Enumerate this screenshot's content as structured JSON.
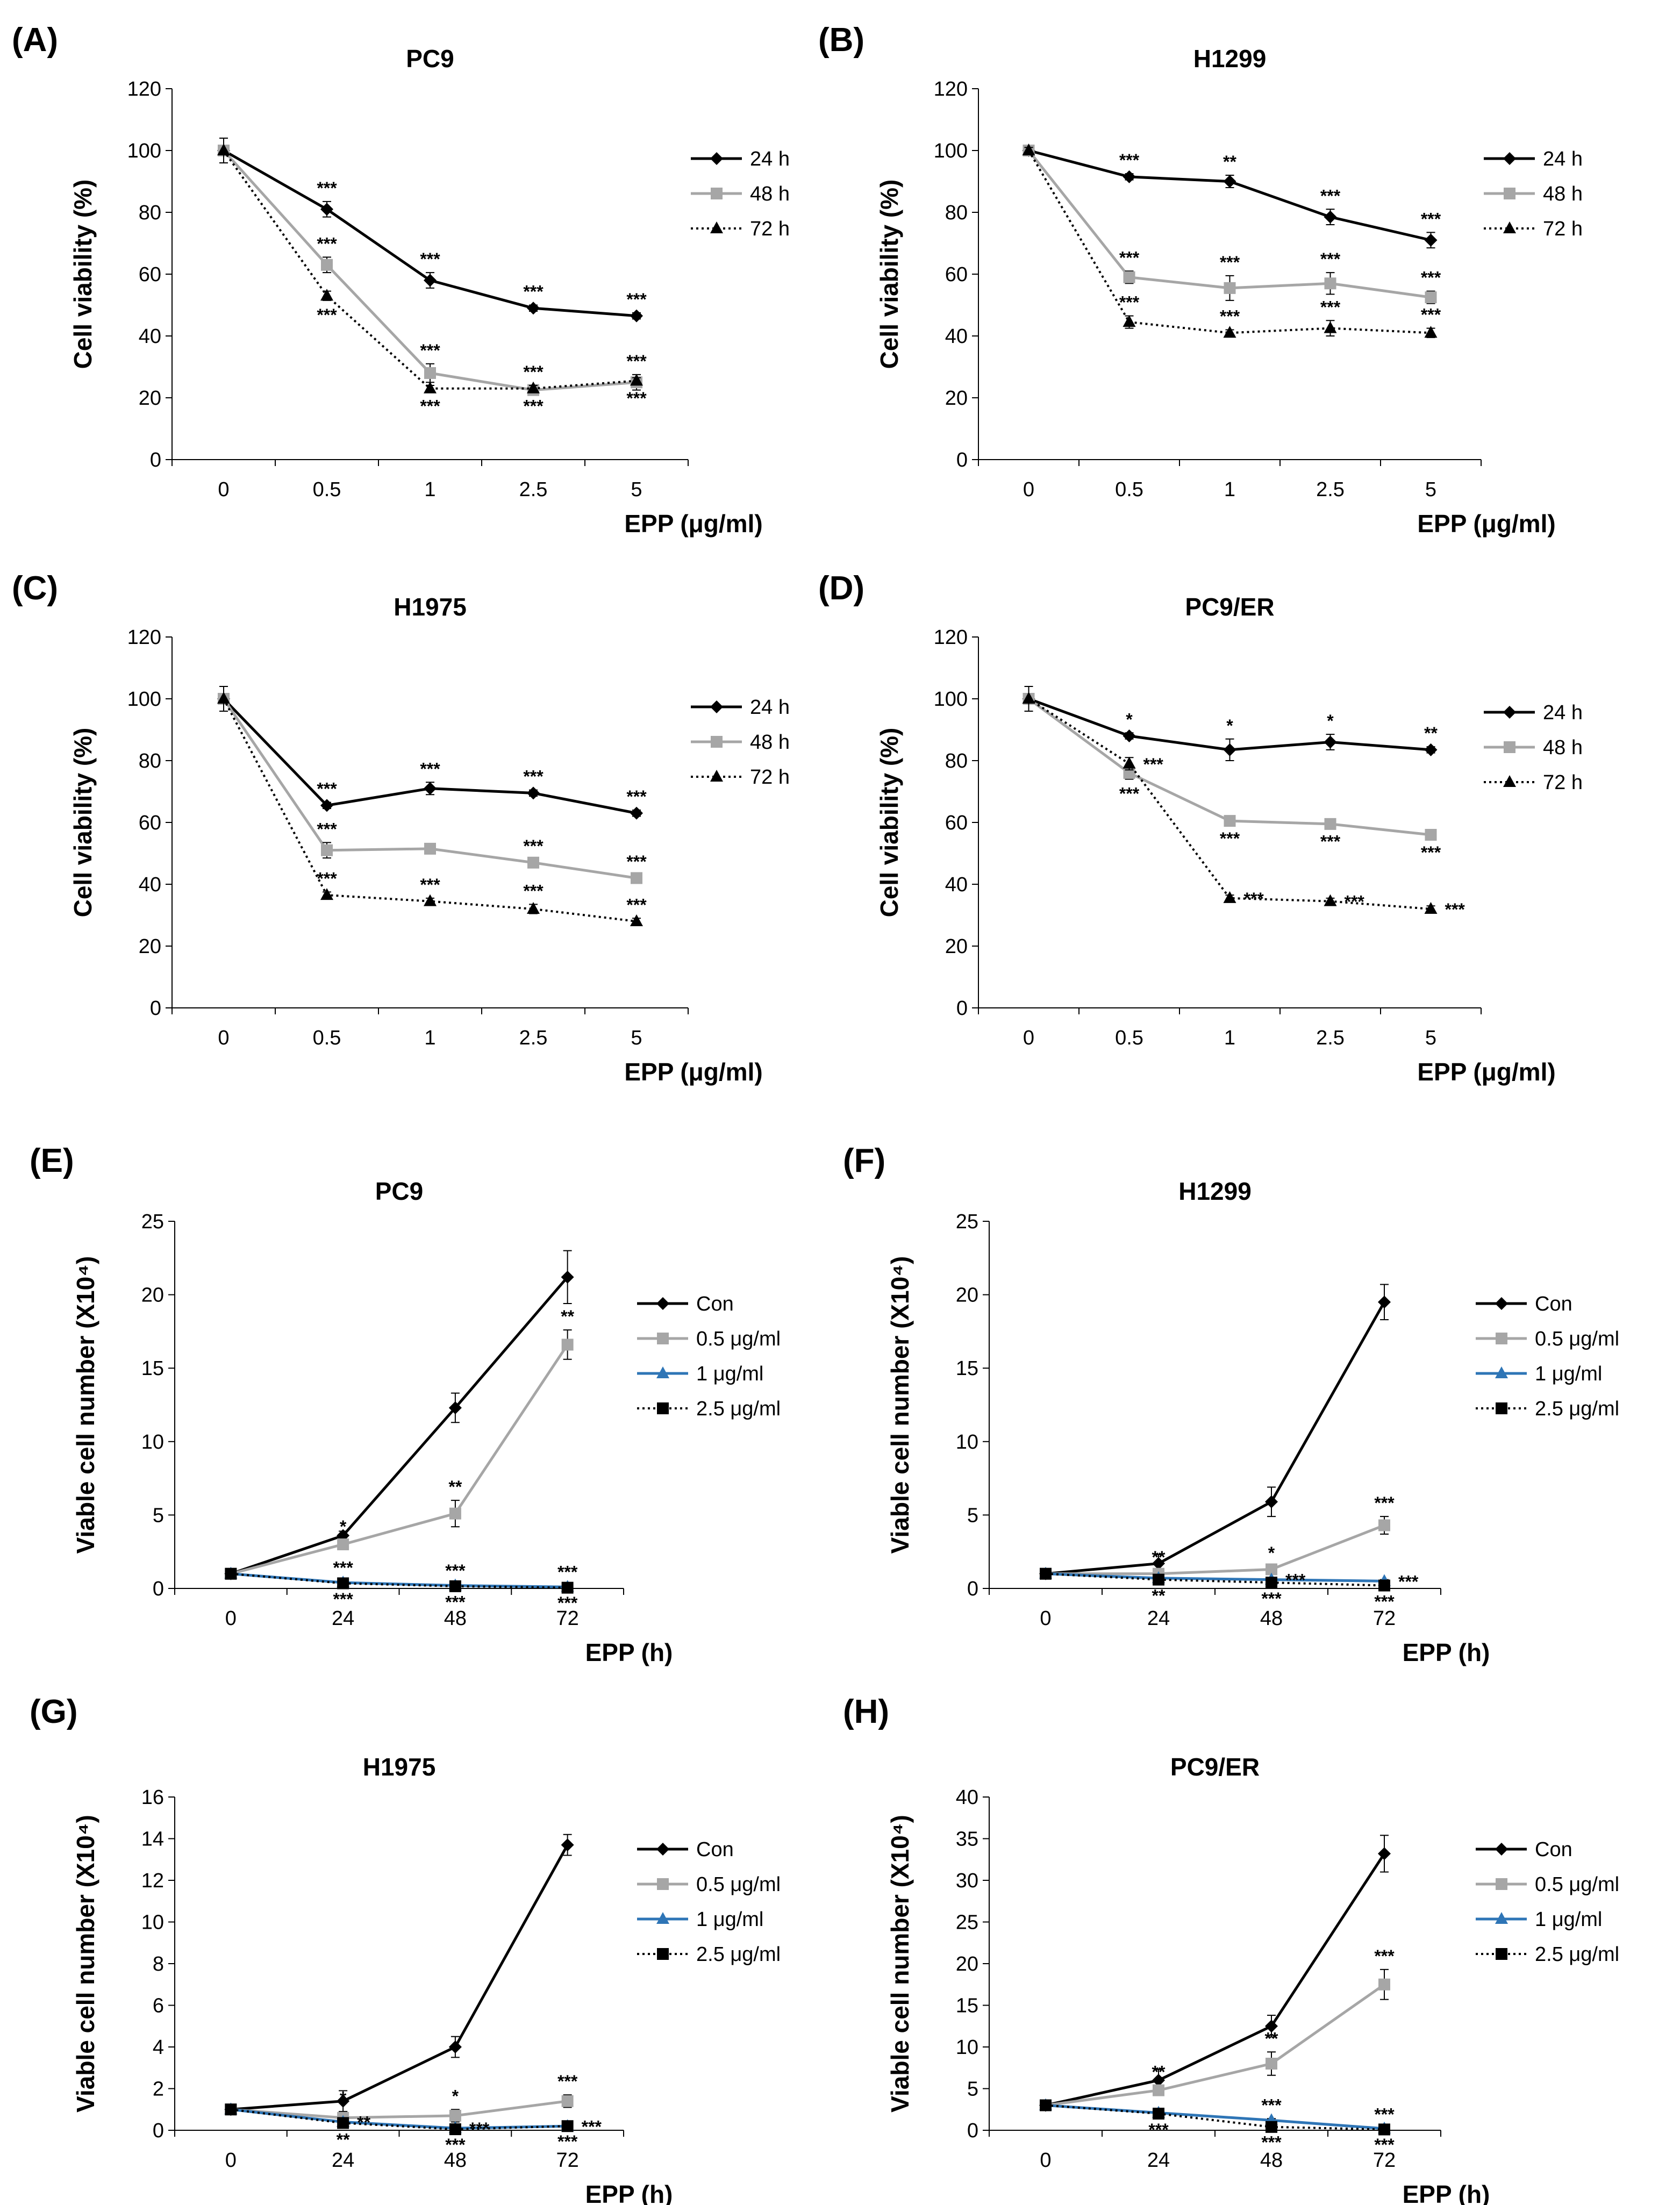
{
  "colors": {
    "black": "#000000",
    "gray": "#a6a6a6",
    "blue": "#2e75b6"
  },
  "chart_data": [
    {
      "panel": "(A)",
      "title": "PC9",
      "type": "line",
      "xlabel": "EPP (μg/ml)",
      "ylabel": "Cell viability (%)",
      "categories": [
        "0",
        "0.5",
        "1",
        "2.5",
        "5"
      ],
      "ylim": [
        0,
        120
      ],
      "yticks": [
        "0",
        "20",
        "40",
        "60",
        "80",
        "100",
        "120"
      ],
      "legend_position": "right",
      "series": [
        {
          "name": "24 h",
          "values": [
            100,
            81,
            58,
            49,
            46.5
          ],
          "errors": [
            4,
            2.5,
            2.5,
            1,
            1
          ],
          "color": "#000000",
          "marker": "diamond",
          "dash": "solid",
          "sig": [
            "",
            "***",
            "***",
            "***",
            "***"
          ],
          "sig_pos": "above"
        },
        {
          "name": "48 h",
          "values": [
            100,
            63,
            28,
            22.5,
            25
          ],
          "errors": [
            4,
            2.5,
            3,
            1.5,
            2.5
          ],
          "color": "#a6a6a6",
          "marker": "square",
          "dash": "solid",
          "sig": [
            "",
            "***",
            "***",
            "***",
            "***"
          ],
          "sig_pos": "above"
        },
        {
          "name": "72 h",
          "values": [
            100,
            53,
            23,
            23,
            25.5
          ],
          "errors": [
            4,
            1.5,
            1,
            1,
            1
          ],
          "color": "#000000",
          "marker": "triangle",
          "dash": "dotted",
          "sig": [
            "",
            "***",
            "***",
            "***",
            "***"
          ],
          "sig_pos": "below"
        }
      ]
    },
    {
      "panel": "(B)",
      "title": "H1299",
      "type": "line",
      "xlabel": "EPP (μg/ml)",
      "ylabel": "Cell viability (%)",
      "categories": [
        "0",
        "0.5",
        "1",
        "2.5",
        "5"
      ],
      "ylim": [
        0,
        120
      ],
      "yticks": [
        "0",
        "20",
        "40",
        "60",
        "80",
        "100",
        "120"
      ],
      "legend_position": "right",
      "series": [
        {
          "name": "24 h",
          "values": [
            100,
            91.5,
            90,
            78.5,
            71
          ],
          "errors": [
            1,
            1,
            2,
            2.5,
            2.5
          ],
          "color": "#000000",
          "marker": "diamond",
          "dash": "solid",
          "sig": [
            "",
            "***",
            "**",
            "***",
            "***"
          ],
          "sig_pos": "above"
        },
        {
          "name": "48 h",
          "values": [
            100,
            59,
            55.5,
            57,
            52.5
          ],
          "errors": [
            1,
            2,
            4,
            3.5,
            2
          ],
          "color": "#a6a6a6",
          "marker": "square",
          "dash": "solid",
          "sig": [
            "",
            "***",
            "***",
            "***",
            "***"
          ],
          "sig_pos": "above"
        },
        {
          "name": "72 h",
          "values": [
            100,
            44.5,
            41,
            42.5,
            41
          ],
          "errors": [
            1,
            2,
            1,
            2.5,
            1.5
          ],
          "color": "#000000",
          "marker": "triangle",
          "dash": "dotted",
          "sig": [
            "",
            "***",
            "***",
            "***",
            "***"
          ],
          "sig_pos": "above"
        }
      ]
    },
    {
      "panel": "(C)",
      "title": "H1975",
      "type": "line",
      "xlabel": "EPP (μg/ml)",
      "ylabel": "Cell viability (%)",
      "categories": [
        "0",
        "0.5",
        "1",
        "2.5",
        "5"
      ],
      "ylim": [
        0,
        120
      ],
      "yticks": [
        "0",
        "20",
        "40",
        "60",
        "80",
        "100",
        "120"
      ],
      "legend_position": "right",
      "series": [
        {
          "name": "24 h",
          "values": [
            100,
            65.5,
            71,
            69.5,
            63
          ],
          "errors": [
            4,
            1,
            2,
            1,
            1
          ],
          "color": "#000000",
          "marker": "diamond",
          "dash": "solid",
          "sig": [
            "",
            "***",
            "***",
            "***",
            "***"
          ],
          "sig_pos": "above"
        },
        {
          "name": "48 h",
          "values": [
            100,
            51,
            51.5,
            47,
            42
          ],
          "errors": [
            4,
            2.5,
            1,
            1,
            1
          ],
          "color": "#a6a6a6",
          "marker": "square",
          "dash": "solid",
          "sig": [
            "",
            "***",
            "",
            "***",
            "***"
          ],
          "sig_pos": "above"
        },
        {
          "name": "72 h",
          "values": [
            100,
            36.5,
            34.5,
            32,
            28
          ],
          "errors": [
            4,
            1,
            1,
            1.5,
            1
          ],
          "color": "#000000",
          "marker": "triangle",
          "dash": "dotted",
          "sig": [
            "",
            "***",
            "***",
            "***",
            "***"
          ],
          "sig_pos": "above"
        }
      ]
    },
    {
      "panel": "(D)",
      "title": "PC9/ER",
      "type": "line",
      "xlabel": "EPP (μg/ml)",
      "ylabel": "Cell viability (%)",
      "categories": [
        "0",
        "0.5",
        "1",
        "2.5",
        "5"
      ],
      "ylim": [
        0,
        120
      ],
      "yticks": [
        "0",
        "20",
        "40",
        "60",
        "80",
        "100",
        "120"
      ],
      "legend_position": "right",
      "series": [
        {
          "name": "24 h",
          "values": [
            100,
            88,
            83.5,
            86,
            83.5
          ],
          "errors": [
            4,
            1,
            3.5,
            2.5,
            1
          ],
          "color": "#000000",
          "marker": "diamond",
          "dash": "solid",
          "sig": [
            "",
            "*",
            "*",
            "*",
            "**"
          ],
          "sig_pos": "above"
        },
        {
          "name": "48 h",
          "values": [
            100,
            76,
            60.5,
            59.5,
            56
          ],
          "errors": [
            4,
            2,
            1,
            1,
            1
          ],
          "color": "#a6a6a6",
          "marker": "square",
          "dash": "solid",
          "sig": [
            "",
            "***",
            "***",
            "***",
            "***"
          ],
          "sig_pos": "below"
        },
        {
          "name": "72 h",
          "values": [
            100,
            79,
            35.5,
            34.5,
            32
          ],
          "errors": [
            4,
            2,
            1,
            1,
            1
          ],
          "color": "#000000",
          "marker": "triangle",
          "dash": "dotted",
          "sig": [
            "",
            "***",
            "***",
            "***",
            "***"
          ],
          "sig_pos": "right"
        }
      ]
    },
    {
      "panel": "(E)",
      "title": "PC9",
      "type": "line",
      "xlabel": "EPP (h)",
      "ylabel": "Viable cell number (X10⁴)",
      "categories": [
        "0",
        "24",
        "48",
        "72"
      ],
      "ylim": [
        0,
        25
      ],
      "yticks": [
        "0",
        "5",
        "10",
        "15",
        "20",
        "25"
      ],
      "legend_position": "right",
      "series": [
        {
          "name": "Con",
          "values": [
            1,
            3.6,
            12.3,
            21.2
          ],
          "errors": [
            0.2,
            0.3,
            1,
            1.8
          ],
          "color": "#000000",
          "marker": "diamond",
          "dash": "solid",
          "sig": [
            "",
            "",
            "",
            ""
          ],
          "sig_pos": "above"
        },
        {
          "name": "0.5 μg/ml",
          "values": [
            1,
            3,
            5.1,
            16.6
          ],
          "errors": [
            0.2,
            0.3,
            0.9,
            1
          ],
          "color": "#a6a6a6",
          "marker": "square",
          "dash": "solid",
          "sig": [
            "",
            "*",
            "**",
            "**"
          ],
          "sig_pos": "above"
        },
        {
          "name": "1 μg/ml",
          "values": [
            1,
            0.4,
            0.2,
            0.1
          ],
          "errors": [
            0.1,
            0.1,
            0.1,
            0.1
          ],
          "color": "#2e75b6",
          "marker": "triangle",
          "dash": "solid",
          "sig": [
            "",
            "***",
            "***",
            "***"
          ],
          "sig_pos": "above"
        },
        {
          "name": "2.5 μg/ml",
          "values": [
            1,
            0.35,
            0.15,
            0.05
          ],
          "errors": [
            0.1,
            0.1,
            0.1,
            0.05
          ],
          "color": "#000000",
          "marker": "square",
          "dash": "dotted",
          "sig": [
            "",
            "***",
            "***",
            "***"
          ],
          "sig_pos": "below"
        }
      ]
    },
    {
      "panel": "(F)",
      "title": "H1299",
      "type": "line",
      "xlabel": "EPP (h)",
      "ylabel": "Viable cell number (X10⁴)",
      "categories": [
        "0",
        "24",
        "48",
        "72"
      ],
      "ylim": [
        0,
        25
      ],
      "yticks": [
        "0",
        "5",
        "10",
        "15",
        "20",
        "25"
      ],
      "legend_position": "right",
      "series": [
        {
          "name": "Con",
          "values": [
            1,
            1.7,
            5.9,
            19.5
          ],
          "errors": [
            0.2,
            0.6,
            1,
            1.2
          ],
          "color": "#000000",
          "marker": "diamond",
          "dash": "solid",
          "sig": [
            "",
            "",
            "",
            ""
          ],
          "sig_pos": "above"
        },
        {
          "name": "0.5 μg/ml",
          "values": [
            1,
            1,
            1.3,
            4.3
          ],
          "errors": [
            0.2,
            0.2,
            0.2,
            0.6
          ],
          "color": "#a6a6a6",
          "marker": "square",
          "dash": "solid",
          "sig": [
            "",
            "**",
            "*",
            "***"
          ],
          "sig_pos": "above"
        },
        {
          "name": "1 μg/ml",
          "values": [
            1,
            0.7,
            0.6,
            0.5
          ],
          "errors": [
            0.1,
            0.1,
            0.1,
            0.1
          ],
          "color": "#2e75b6",
          "marker": "triangle",
          "dash": "solid",
          "sig": [
            "",
            "",
            "***",
            "***"
          ],
          "sig_pos": "right"
        },
        {
          "name": "2.5 μg/ml",
          "values": [
            1,
            0.6,
            0.4,
            0.2
          ],
          "errors": [
            0.1,
            0.1,
            0.1,
            0.1
          ],
          "color": "#000000",
          "marker": "square",
          "dash": "dotted",
          "sig": [
            "",
            "**",
            "***",
            "***"
          ],
          "sig_pos": "below"
        }
      ]
    },
    {
      "panel": "(G)",
      "title": "H1975",
      "type": "line",
      "xlabel": "EPP (h)",
      "ylabel": "Viable cell number (X10⁴)",
      "categories": [
        "0",
        "24",
        "48",
        "72"
      ],
      "ylim": [
        0,
        16
      ],
      "yticks": [
        "0",
        "2",
        "4",
        "6",
        "8",
        "10",
        "12",
        "14",
        "16"
      ],
      "legend_position": "right",
      "series": [
        {
          "name": "Con",
          "values": [
            1,
            1.4,
            4,
            13.7
          ],
          "errors": [
            0.1,
            0.5,
            0.5,
            0.5
          ],
          "color": "#000000",
          "marker": "diamond",
          "dash": "solid",
          "sig": [
            "",
            "",
            "",
            ""
          ],
          "sig_pos": "above"
        },
        {
          "name": "0.5 μg/ml",
          "values": [
            1,
            0.6,
            0.7,
            1.4
          ],
          "errors": [
            0.1,
            0.3,
            0.3,
            0.3
          ],
          "color": "#a6a6a6",
          "marker": "square",
          "dash": "solid",
          "sig": [
            "",
            "*",
            "*",
            "***"
          ],
          "sig_pos": "above"
        },
        {
          "name": "1 μg/ml",
          "values": [
            1,
            0.4,
            0.1,
            0.2
          ],
          "errors": [
            0.1,
            0.1,
            0.05,
            0.05
          ],
          "color": "#2e75b6",
          "marker": "triangle",
          "dash": "solid",
          "sig": [
            "",
            "**",
            "***",
            "***"
          ],
          "sig_pos": "right"
        },
        {
          "name": "2.5 μg/ml",
          "values": [
            1,
            0.35,
            0.05,
            0.2
          ],
          "errors": [
            0.1,
            0.1,
            0.05,
            0.05
          ],
          "color": "#000000",
          "marker": "square",
          "dash": "dotted",
          "sig": [
            "",
            "**",
            "***",
            "***"
          ],
          "sig_pos": "below"
        }
      ]
    },
    {
      "panel": "(H)",
      "title": "PC9/ER",
      "type": "line",
      "xlabel": "EPP (h)",
      "ylabel": "Viable cell number (X10⁴)",
      "categories": [
        "0",
        "24",
        "48",
        "72"
      ],
      "ylim": [
        0,
        40
      ],
      "yticks": [
        "0",
        "5",
        "10",
        "15",
        "20",
        "25",
        "30",
        "35",
        "40"
      ],
      "legend_position": "right",
      "series": [
        {
          "name": "Con",
          "values": [
            3,
            6,
            12.5,
            33.2
          ],
          "errors": [
            0.3,
            1.3,
            1.3,
            2.2
          ],
          "color": "#000000",
          "marker": "diamond",
          "dash": "solid",
          "sig": [
            "",
            "",
            "",
            ""
          ],
          "sig_pos": "above"
        },
        {
          "name": "0.5 μg/ml",
          "values": [
            3,
            4.8,
            8,
            17.5
          ],
          "errors": [
            0.3,
            0.6,
            1.4,
            1.8
          ],
          "color": "#a6a6a6",
          "marker": "square",
          "dash": "solid",
          "sig": [
            "",
            "**",
            "**",
            "***"
          ],
          "sig_pos": "above"
        },
        {
          "name": "1 μg/ml",
          "values": [
            3,
            2.1,
            1.2,
            0.2
          ],
          "errors": [
            0.2,
            0.2,
            0.2,
            0.1
          ],
          "color": "#2e75b6",
          "marker": "triangle",
          "dash": "solid",
          "sig": [
            "",
            "",
            "***",
            "***"
          ],
          "sig_pos": "above"
        },
        {
          "name": "2.5 μg/ml",
          "values": [
            3,
            2,
            0.4,
            0.1
          ],
          "errors": [
            0.2,
            0.2,
            0.1,
            0.1
          ],
          "color": "#000000",
          "marker": "square",
          "dash": "dotted",
          "sig": [
            "",
            "***",
            "***",
            "***"
          ],
          "sig_pos": "below"
        }
      ]
    }
  ]
}
